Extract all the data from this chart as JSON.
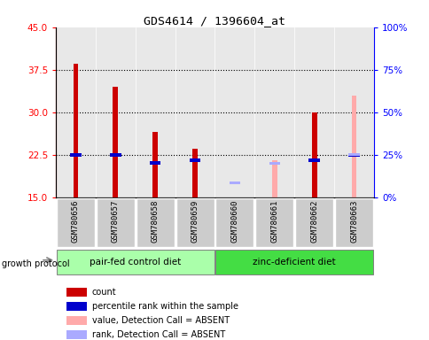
{
  "title": "GDS4614 / 1396604_at",
  "samples": [
    "GSM780656",
    "GSM780657",
    "GSM780658",
    "GSM780659",
    "GSM780660",
    "GSM780661",
    "GSM780662",
    "GSM780663"
  ],
  "ylim_left": [
    15,
    45
  ],
  "ylim_right": [
    0,
    100
  ],
  "yticks_left": [
    15,
    22.5,
    30,
    37.5,
    45
  ],
  "yticks_right": [
    0,
    25,
    50,
    75,
    100
  ],
  "ytick_labels_right": [
    "0%",
    "25%",
    "50%",
    "75%",
    "100%"
  ],
  "count_values": [
    38.5,
    34.5,
    26.5,
    23.5,
    null,
    null,
    30.0,
    null
  ],
  "rank_values": [
    22.5,
    22.5,
    21.0,
    21.5,
    null,
    null,
    21.5,
    22.5
  ],
  "absent_value_values": [
    null,
    null,
    null,
    null,
    null,
    21.5,
    null,
    33.0
  ],
  "absent_rank_values": [
    null,
    null,
    null,
    null,
    17.5,
    21.0,
    null,
    22.5
  ],
  "bar_bottom": 15,
  "count_color": "#cc0000",
  "rank_color": "#0000cc",
  "absent_value_color": "#ffaaaa",
  "absent_rank_color": "#aaaaff",
  "group1_label": "pair-fed control diet",
  "group2_label": "zinc-deficient diet",
  "group1_color": "#aaffaa",
  "group2_color": "#44dd44",
  "group_protocol_label": "growth protocol",
  "legend_items": [
    {
      "label": "count",
      "color": "#cc0000"
    },
    {
      "label": "percentile rank within the sample",
      "color": "#0000cc"
    },
    {
      "label": "value, Detection Call = ABSENT",
      "color": "#ffaaaa"
    },
    {
      "label": "rank, Detection Call = ABSENT",
      "color": "#aaaaff"
    }
  ],
  "dotted_lines": [
    22.5,
    30,
    37.5
  ],
  "plot_bg_color": "#e8e8e8",
  "sample_bg_color": "#cccccc",
  "group1_indices": [
    0,
    1,
    2,
    3
  ],
  "group2_indices": [
    4,
    5,
    6,
    7
  ]
}
